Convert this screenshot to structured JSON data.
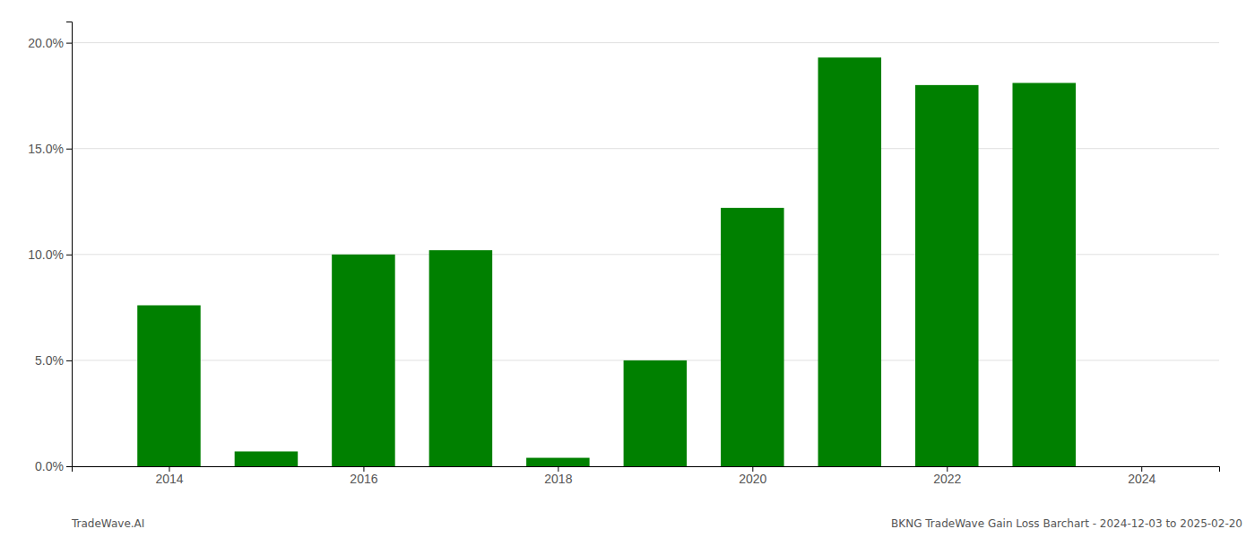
{
  "chart_data": {
    "type": "bar",
    "x": [
      2014,
      2015,
      2016,
      2017,
      2018,
      2019,
      2020,
      2021,
      2022,
      2023
    ],
    "values": [
      0.076,
      0.007,
      0.1,
      0.102,
      0.004,
      0.05,
      0.122,
      0.193,
      0.18,
      0.181
    ],
    "color": "#008000",
    "xlim": [
      2013.0,
      2024.8
    ],
    "xticks": [
      2014,
      2016,
      2018,
      2020,
      2022,
      2024
    ],
    "ylim": [
      0,
      0.21
    ],
    "yticks": [
      {
        "value": 0.0,
        "label": "0.0%"
      },
      {
        "value": 0.05,
        "label": "5.0%"
      },
      {
        "value": 0.1,
        "label": "10.0%"
      },
      {
        "value": 0.15,
        "label": "15.0%"
      },
      {
        "value": 0.2,
        "label": "20.0%"
      }
    ],
    "grid": true,
    "annotations": [
      "TradeWave.AI",
      "BKNG TradeWave Gain Loss Barchart - 2024-12-03 to 2025-02-20"
    ]
  }
}
